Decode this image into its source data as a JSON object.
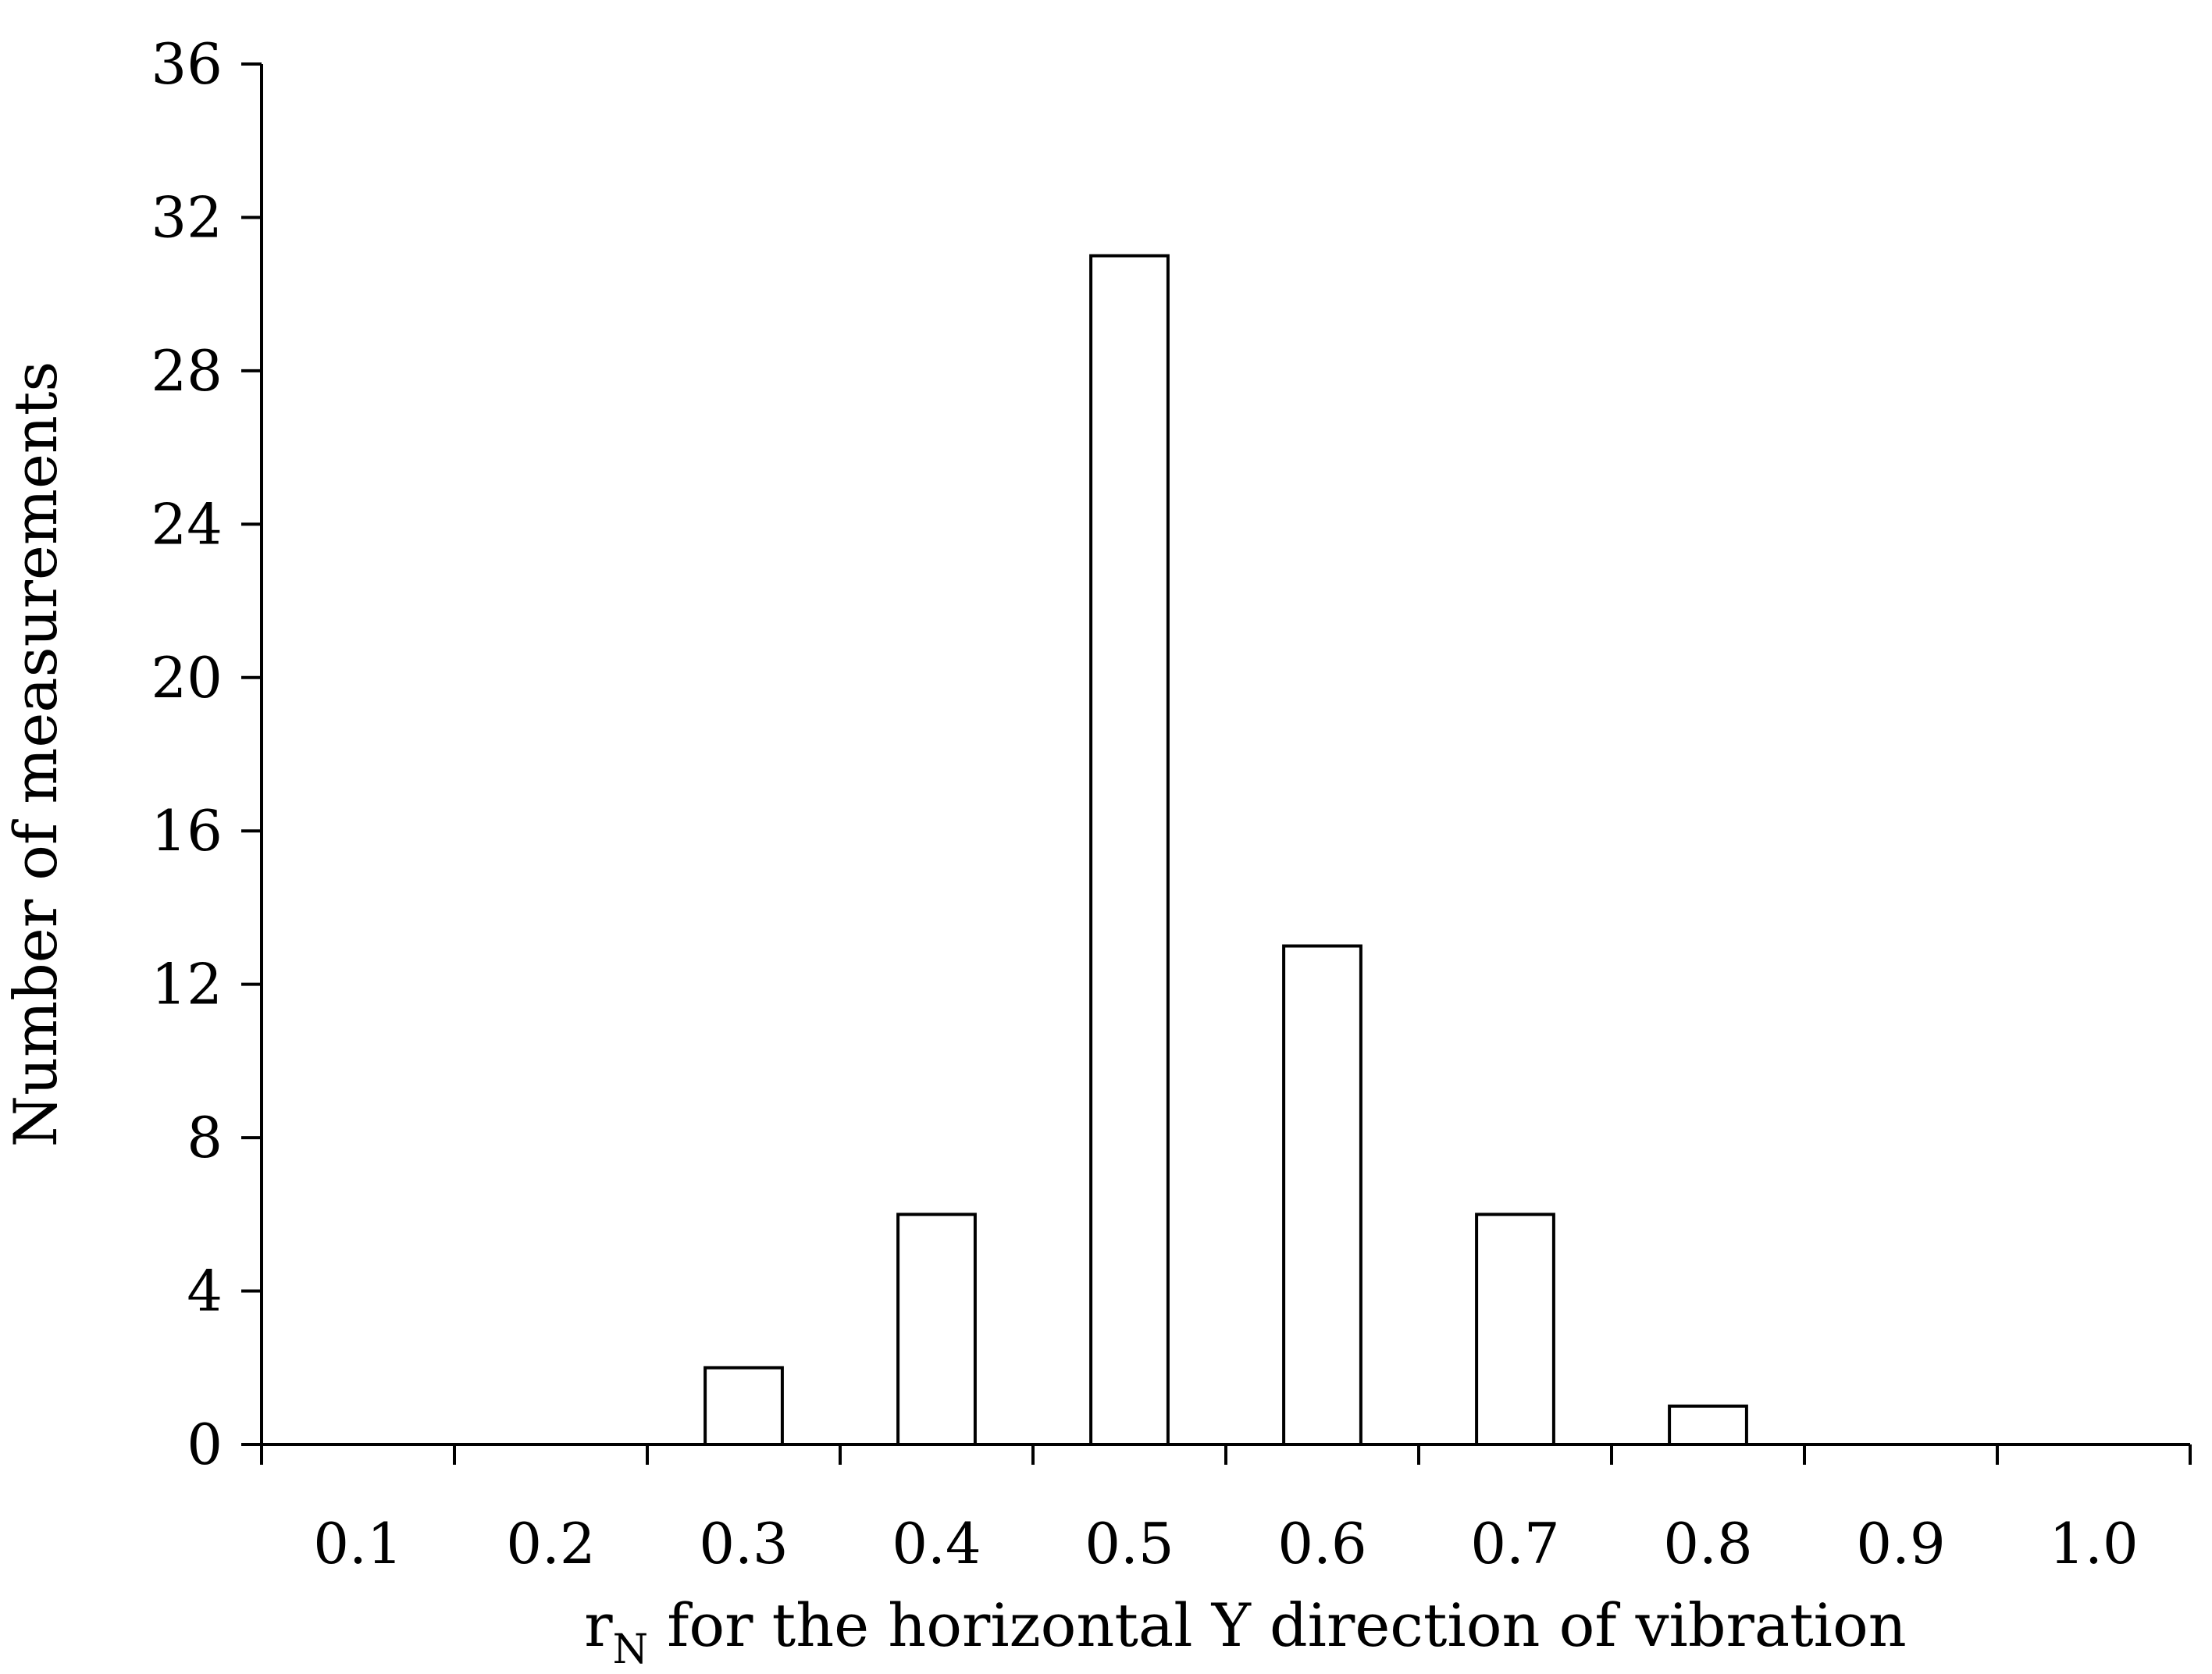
{
  "chart_data": {
    "type": "bar",
    "categories": [
      "0.1",
      "0.2",
      "0.3",
      "0.4",
      "0.5",
      "0.6",
      "0.7",
      "0.8",
      "0.9",
      "1.0"
    ],
    "values": [
      0,
      0,
      2,
      6,
      31,
      13,
      6,
      1,
      0,
      0
    ],
    "title": "",
    "xlabel": {
      "main": "r",
      "subscript": "N",
      "rest": " for the horizontal Y direction of vibration"
    },
    "ylabel": "Number of measurements",
    "ylim": [
      0,
      36
    ],
    "yticks": [
      "0",
      "4",
      "8",
      "12",
      "16",
      "20",
      "24",
      "28",
      "32",
      "36"
    ],
    "grid": false,
    "legend": "none",
    "colors": {
      "bar_fill": "#ffffff",
      "bar_stroke": "#000000",
      "axis": "#000000"
    }
  }
}
